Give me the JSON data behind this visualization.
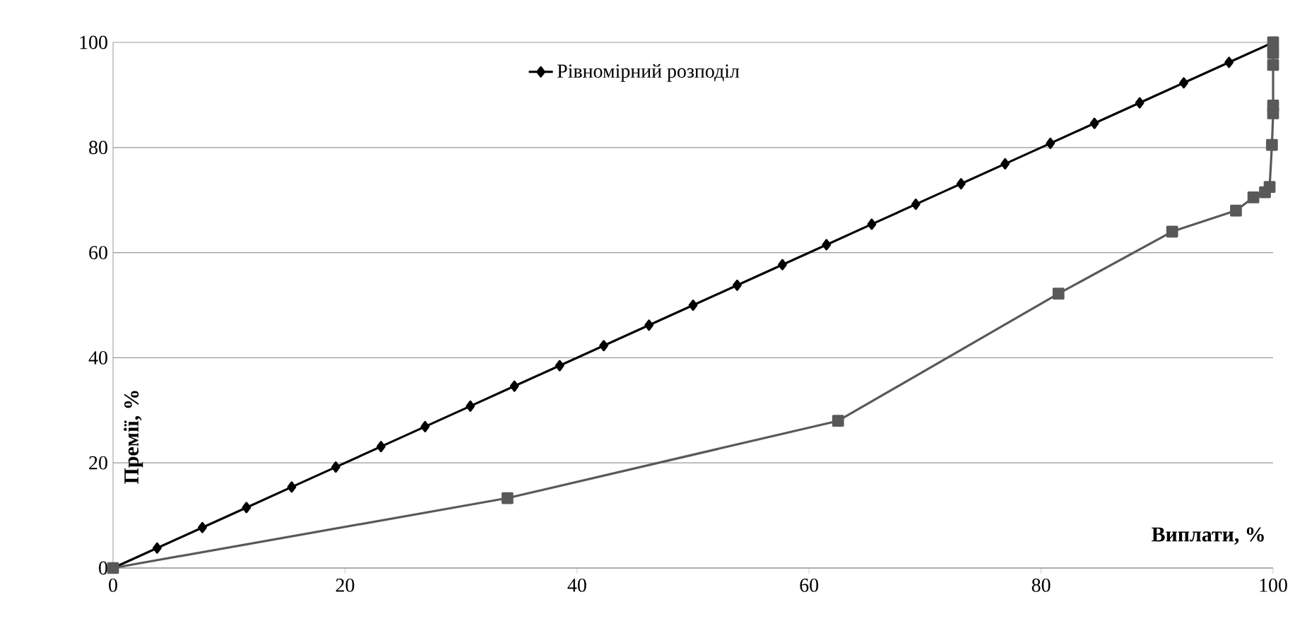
{
  "chart_data": {
    "type": "line",
    "xlabel": "Виплати, %",
    "ylabel": "Премії, %",
    "series": [
      {
        "name": "Рівномірний розподіл",
        "color": "#000000",
        "marker": "diamond",
        "x": [
          0,
          3.8,
          7.7,
          11.5,
          15.4,
          19.2,
          23.1,
          26.9,
          30.8,
          34.6,
          38.5,
          42.3,
          46.2,
          50,
          53.8,
          57.7,
          61.5,
          65.4,
          69.2,
          73.1,
          76.9,
          80.8,
          84.6,
          88.5,
          92.3,
          96.2,
          100
        ],
        "values": [
          0,
          3.8,
          7.7,
          11.5,
          15.4,
          19.2,
          23.1,
          26.9,
          30.8,
          34.6,
          38.5,
          42.3,
          46.2,
          50,
          53.8,
          57.7,
          61.5,
          65.4,
          69.2,
          73.1,
          76.9,
          80.8,
          84.6,
          88.5,
          92.3,
          96.2,
          100
        ]
      },
      {
        "color": "#595959",
        "marker": "square",
        "x": [
          0,
          34,
          62.5,
          81.5,
          91.3,
          96.8,
          98.3,
          99.3,
          99.7,
          99.9,
          100,
          100,
          100,
          100,
          100
        ],
        "values": [
          0,
          13.3,
          28,
          52.2,
          64,
          68,
          70.5,
          71.5,
          72.5,
          80.5,
          86.5,
          88,
          95.7,
          98,
          100
        ]
      }
    ],
    "xlim": [
      0,
      100
    ],
    "ylim": [
      0,
      100
    ],
    "xticks": [
      0,
      20,
      40,
      60,
      80,
      100
    ],
    "yticks": [
      0,
      20,
      40,
      60,
      80,
      100
    ],
    "grid": "y",
    "legend": "top"
  }
}
